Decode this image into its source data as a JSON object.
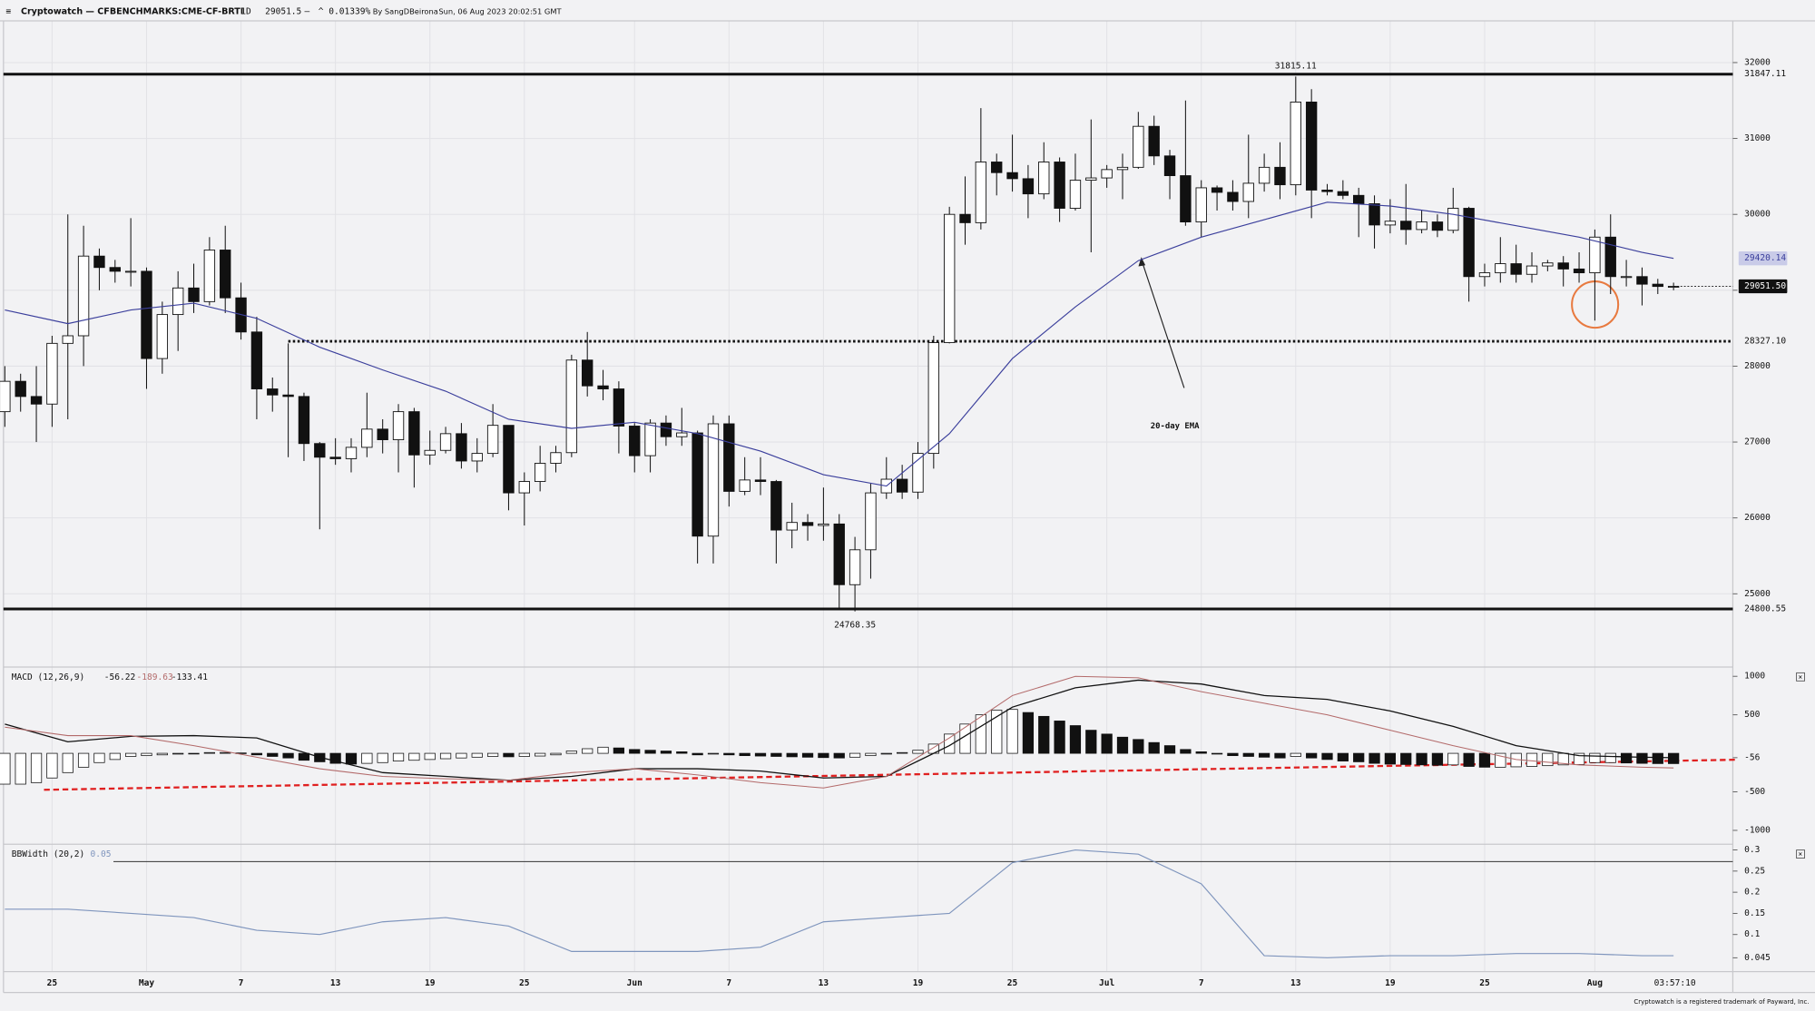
{
  "header": {
    "brand": "Cryptowatch — CFBENCHMARKS:CME-CF-BRTI",
    "interval": "1D",
    "change_sep": "—",
    "change": "^ 0.01339%",
    "author": "By SangDBeirona",
    "date": "Sun, 06 Aug 2023 20:02:51 GMT"
  },
  "footer": "Cryptowatch is a registered trademark of Payward, Inc.",
  "countdown": "03:57:10",
  "chart_data": [
    {
      "type": "candlestick",
      "x": [
        "Apr 22",
        "Apr 23",
        "Apr 24",
        "Apr 25",
        "Apr 26",
        "Apr 27",
        "Apr 28",
        "Apr 29",
        "Apr 30",
        "May 1",
        "May 2",
        "May 3",
        "May 4",
        "May 5",
        "May 6",
        "May 7",
        "May 8",
        "May 9",
        "May 10",
        "May 11",
        "May 12",
        "May 13",
        "May 14",
        "May 15",
        "May 16",
        "May 17",
        "May 18",
        "May 19",
        "May 20",
        "May 21",
        "May 22",
        "May 23",
        "May 24",
        "May 25",
        "May 26",
        "May 27",
        "May 28",
        "May 29",
        "May 30",
        "May 31",
        "Jun 1",
        "Jun 2",
        "Jun 3",
        "Jun 4",
        "Jun 5",
        "Jun 6",
        "Jun 7",
        "Jun 8",
        "Jun 9",
        "Jun 10",
        "Jun 11",
        "Jun 12",
        "Jun 13",
        "Jun 14",
        "Jun 15",
        "Jun 16",
        "Jun 17",
        "Jun 18",
        "Jun 19",
        "Jun 20",
        "Jun 21",
        "Jun 22",
        "Jun 23",
        "Jun 24",
        "Jun 25",
        "Jun 26",
        "Jun 27",
        "Jun 28",
        "Jun 29",
        "Jun 30",
        "Jul 1",
        "Jul 2",
        "Jul 3",
        "Jul 4",
        "Jul 5",
        "Jul 6",
        "Jul 7",
        "Jul 8",
        "Jul 9",
        "Jul 10",
        "Jul 11",
        "Jul 12",
        "Jul 13",
        "Jul 14",
        "Jul 15",
        "Jul 16",
        "Jul 17",
        "Jul 18",
        "Jul 19",
        "Jul 20",
        "Jul 21",
        "Jul 22",
        "Jul 23",
        "Jul 24",
        "Jul 25",
        "Jul 26",
        "Jul 27",
        "Jul 28",
        "Jul 29",
        "Jul 30",
        "Jul 31",
        "Aug 1",
        "Aug 2",
        "Aug 3",
        "Aug 4",
        "Aug 5",
        "Aug 6"
      ],
      "open": [
        27400,
        27800,
        27600,
        27500,
        28300,
        28400,
        29450,
        29300,
        29250,
        29250,
        28100,
        28680,
        29030,
        28850,
        29530,
        28900,
        28450,
        27700,
        27620,
        27600,
        26980,
        26800,
        26780,
        26930,
        27170,
        27030,
        27400,
        26830,
        26890,
        27110,
        26750,
        26850,
        27220,
        26330,
        26480,
        26720,
        26860,
        28080,
        27740,
        27700,
        27210,
        26820,
        27250,
        27070,
        27120,
        25760,
        27240,
        26350,
        26500,
        26480,
        25840,
        25940,
        25900,
        25920,
        25120,
        25580,
        26330,
        26510,
        26340,
        26850,
        28310,
        30000,
        29890,
        30690,
        30550,
        30470,
        30270,
        30690,
        30080,
        30450,
        30480,
        30590,
        30620,
        31160,
        30770,
        30510,
        29900,
        30350,
        30290,
        30170,
        30410,
        30620,
        30390,
        31480,
        30320,
        30300,
        30250,
        30140,
        29860,
        29910,
        29800,
        29900,
        29790,
        30080,
        29180,
        29230,
        29350,
        29210,
        29320,
        29360,
        29280,
        29230,
        29700,
        29180,
        29180,
        29080,
        29050
      ],
      "high": [
        28000,
        27900,
        28000,
        28400,
        30000,
        29850,
        29550,
        29400,
        29950,
        29300,
        28850,
        29250,
        29350,
        29700,
        29850,
        29100,
        28650,
        27850,
        28300,
        27650,
        27000,
        27050,
        27050,
        27650,
        27300,
        27500,
        27450,
        27150,
        27200,
        27250,
        27050,
        27500,
        27220,
        26600,
        26950,
        26950,
        28150,
        28450,
        27950,
        27800,
        27250,
        27300,
        27350,
        27450,
        27150,
        27350,
        27350,
        26800,
        26800,
        26500,
        26200,
        26050,
        26400,
        26050,
        25750,
        26450,
        26800,
        26700,
        27000,
        28400,
        30100,
        30500,
        31400,
        30800,
        31050,
        30650,
        30950,
        30750,
        30800,
        31250,
        30650,
        30800,
        31350,
        31300,
        30850,
        31500,
        30450,
        30380,
        30450,
        31050,
        30800,
        30950,
        31815.11,
        31650,
        30400,
        30450,
        30350,
        30250,
        30200,
        30400,
        30050,
        30000,
        30350,
        30100,
        29350,
        29700,
        29600,
        29500,
        29400,
        29450,
        29500,
        29800,
        30000,
        29400,
        29300,
        29150,
        29100
      ],
      "low": [
        27200,
        27400,
        27000,
        27200,
        27300,
        28000,
        29000,
        29100,
        29050,
        27700,
        27900,
        28200,
        28700,
        28800,
        28700,
        28350,
        27300,
        27400,
        26800,
        26750,
        25850,
        26700,
        26600,
        26800,
        26850,
        26600,
        26400,
        26700,
        26850,
        26650,
        26600,
        26800,
        26100,
        25900,
        26350,
        26600,
        26800,
        27600,
        27550,
        26850,
        26600,
        26600,
        26950,
        26950,
        25400,
        25400,
        26150,
        26300,
        26300,
        25400,
        25600,
        25700,
        25700,
        24800,
        24768.35,
        25200,
        26250,
        26250,
        26250,
        26650,
        28300,
        29600,
        29800,
        30250,
        30300,
        29950,
        30200,
        29900,
        30050,
        29500,
        30350,
        30200,
        30600,
        30650,
        30200,
        29850,
        29700,
        30050,
        30050,
        29950,
        30300,
        30200,
        30250,
        29950,
        30250,
        30200,
        29700,
        29550,
        29750,
        29600,
        29750,
        29700,
        29750,
        28850,
        29050,
        29100,
        29100,
        29100,
        29250,
        29050,
        29100,
        28600,
        28950,
        29050,
        28800,
        28950,
        29000
      ],
      "close": [
        27800,
        27600,
        27500,
        28300,
        28400,
        29450,
        29300,
        29250,
        29250,
        28100,
        28680,
        29030,
        28850,
        29530,
        28900,
        28450,
        27700,
        27620,
        27600,
        26980,
        26800,
        26780,
        26930,
        27170,
        27030,
        27400,
        26830,
        26890,
        27110,
        26750,
        26850,
        27220,
        26330,
        26480,
        26720,
        26860,
        28080,
        27740,
        27700,
        27210,
        26820,
        27250,
        27070,
        27120,
        25760,
        27240,
        26350,
        26500,
        26480,
        25840,
        25940,
        25900,
        25920,
        25120,
        25580,
        26330,
        26510,
        26340,
        26850,
        28310,
        30000,
        29890,
        30690,
        30550,
        30470,
        30270,
        30690,
        30080,
        30450,
        30480,
        30590,
        30620,
        31160,
        30770,
        30510,
        29900,
        30350,
        30290,
        30170,
        30410,
        30620,
        30390,
        31480,
        30320,
        30300,
        30250,
        30140,
        29860,
        29910,
        29800,
        29900,
        29790,
        30080,
        29180,
        29230,
        29350,
        29210,
        29320,
        29360,
        29280,
        29230,
        29700,
        29180,
        29180,
        29080,
        29050,
        29051.5
      ],
      "close_label": "29051.50",
      "ema": {
        "color": "#3b3f9c",
        "x": [
          "Apr 22",
          "Apr 26",
          "Apr 30",
          "May 4",
          "May 8",
          "May 12",
          "May 16",
          "May 20",
          "May 24",
          "May 28",
          "Jun 1",
          "Jun 5",
          "Jun 9",
          "Jun 13",
          "Jun 17",
          "Jun 21",
          "Jun 25",
          "Jun 29",
          "Jul 3",
          "Jul 7",
          "Jul 11",
          "Jul 15",
          "Jul 19",
          "Jul 23",
          "Jul 27",
          "Jul 31",
          "Aug 4",
          "Aug 6"
        ],
        "values": [
          28740,
          28560,
          28740,
          28830,
          28630,
          28250,
          27950,
          27670,
          27300,
          27180,
          27260,
          27110,
          26880,
          26570,
          26420,
          27110,
          28100,
          28780,
          29390,
          29700,
          29930,
          30160,
          30110,
          30000,
          29850,
          29700,
          29500,
          29420.14
        ]
      },
      "annotation": "20-day EMA",
      "ylim": [
        24050,
        32550
      ],
      "yticks": [
        25000,
        26000,
        27000,
        28000,
        29000,
        30000,
        31000,
        32000
      ],
      "levels": [
        {
          "value": 31847.11,
          "style": "solid"
        },
        {
          "value": 28327.1,
          "label": "28327.10",
          "style": "dotted",
          "from": "May 10"
        },
        {
          "value": 24800.55,
          "style": "solid"
        }
      ],
      "xticks": [
        {
          "value": "Apr 25",
          "label": "25"
        },
        {
          "value": "May 1",
          "label": "May"
        },
        {
          "value": "May 7",
          "label": "7"
        },
        {
          "value": "May 13",
          "label": "13"
        },
        {
          "value": "May 19",
          "label": "19"
        },
        {
          "value": "May 25",
          "label": "25"
        },
        {
          "value": "Jun 1",
          "label": "Jun"
        },
        {
          "value": "Jun 7",
          "label": "7"
        },
        {
          "value": "Jun 13",
          "label": "13"
        },
        {
          "value": "Jun 19",
          "label": "19"
        },
        {
          "value": "Jun 25",
          "label": "25"
        },
        {
          "value": "Jul 1",
          "label": "Jul"
        },
        {
          "value": "Jul 7",
          "label": "7"
        },
        {
          "value": "Jul 13",
          "label": "13"
        },
        {
          "value": "Jul 19",
          "label": "19"
        },
        {
          "value": "Jul 25",
          "label": "25"
        },
        {
          "value": "Aug 1",
          "label": "Aug"
        }
      ],
      "grid": true
    },
    {
      "type": "macd",
      "title": "MACD (12,26,9)",
      "x": [
        "Apr 22",
        "Apr 26",
        "Apr 30",
        "May 4",
        "May 8",
        "May 12",
        "May 16",
        "May 20",
        "May 24",
        "May 28",
        "Jun 1",
        "Jun 5",
        "Jun 9",
        "Jun 13",
        "Jun 17",
        "Jun 21",
        "Jun 25",
        "Jun 29",
        "Jul 3",
        "Jul 7",
        "Jul 11",
        "Jul 15",
        "Jul 19",
        "Jul 23",
        "Jul 27",
        "Jul 31",
        "Aug 4",
        "Aug 6"
      ],
      "series": [
        {
          "color": "#111111",
          "values": [
            380,
            150,
            220,
            230,
            200,
            -50,
            -250,
            -300,
            -350,
            -300,
            -200,
            -200,
            -230,
            -320,
            -300,
            100,
            600,
            850,
            950,
            900,
            750,
            700,
            550,
            350,
            100,
            -30,
            -50,
            -56.22
          ]
        },
        {
          "color": "#b36a6a",
          "values": [
            340,
            230,
            230,
            100,
            -50,
            -200,
            -300,
            -330,
            -350,
            -250,
            -200,
            -280,
            -380,
            -450,
            -300,
            200,
            750,
            1000,
            980,
            800,
            650,
            500,
            300,
            100,
            -80,
            -150,
            -180,
            -189.63
          ]
        }
      ],
      "histogram": [
        -400,
        -400,
        -380,
        -320,
        -250,
        -180,
        -120,
        -80,
        -40,
        -30,
        -20,
        -10,
        -5,
        10,
        10,
        5,
        -20,
        -40,
        -60,
        -90,
        -110,
        -130,
        -140,
        -130,
        -120,
        -100,
        -90,
        -80,
        -70,
        -60,
        -50,
        -40,
        -45,
        -40,
        -35,
        -20,
        30,
        60,
        80,
        70,
        50,
        40,
        30,
        20,
        -20,
        -10,
        -20,
        -30,
        -35,
        -40,
        -45,
        -50,
        -55,
        -60,
        -50,
        -30,
        -10,
        10,
        40,
        120,
        250,
        380,
        500,
        560,
        570,
        530,
        480,
        420,
        360,
        300,
        250,
        210,
        180,
        140,
        100,
        50,
        20,
        -10,
        -30,
        -40,
        -50,
        -60,
        -40,
        -60,
        -80,
        -100,
        -110,
        -130,
        -140,
        -145,
        -150,
        -155,
        -150,
        -170,
        -180,
        -180,
        -175,
        -170,
        -160,
        -150,
        -145,
        -120,
        -120,
        -125,
        -130,
        -133,
        -133.41
      ],
      "ylim": [
        -1165,
        1090
      ],
      "yticks": [
        -1000,
        -500,
        {
          "value": -56.22,
          "label": "-56"
        },
        500,
        1000
      ]
    },
    {
      "type": "line",
      "title": "BBWidth (20,2)",
      "x": [
        "Apr 22",
        "Apr 26",
        "Apr 30",
        "May 4",
        "May 8",
        "May 12",
        "May 16",
        "May 20",
        "May 24",
        "May 28",
        "Jun 1",
        "Jun 5",
        "Jun 9",
        "Jun 13",
        "Jun 17",
        "Jun 21",
        "Jun 25",
        "Jun 29",
        "Jul 3",
        "Jul 7",
        "Jul 11",
        "Jul 15",
        "Jul 19",
        "Jul 23",
        "Jul 27",
        "Jul 31",
        "Aug 4",
        "Aug 6"
      ],
      "color": "#7f95bd",
      "values": [
        0.16,
        0.16,
        0.15,
        0.14,
        0.11,
        0.1,
        0.13,
        0.14,
        0.12,
        0.06,
        0.06,
        0.06,
        0.07,
        0.13,
        0.14,
        0.15,
        0.27,
        0.3,
        0.29,
        0.22,
        0.05,
        0.045,
        0.05,
        0.05,
        0.055,
        0.055,
        0.05,
        0.05
      ],
      "ylim": [
        0.015,
        0.308
      ],
      "yticks": [
        0.045,
        0.1,
        0.15,
        0.2,
        0.25,
        0.3
      ]
    }
  ]
}
